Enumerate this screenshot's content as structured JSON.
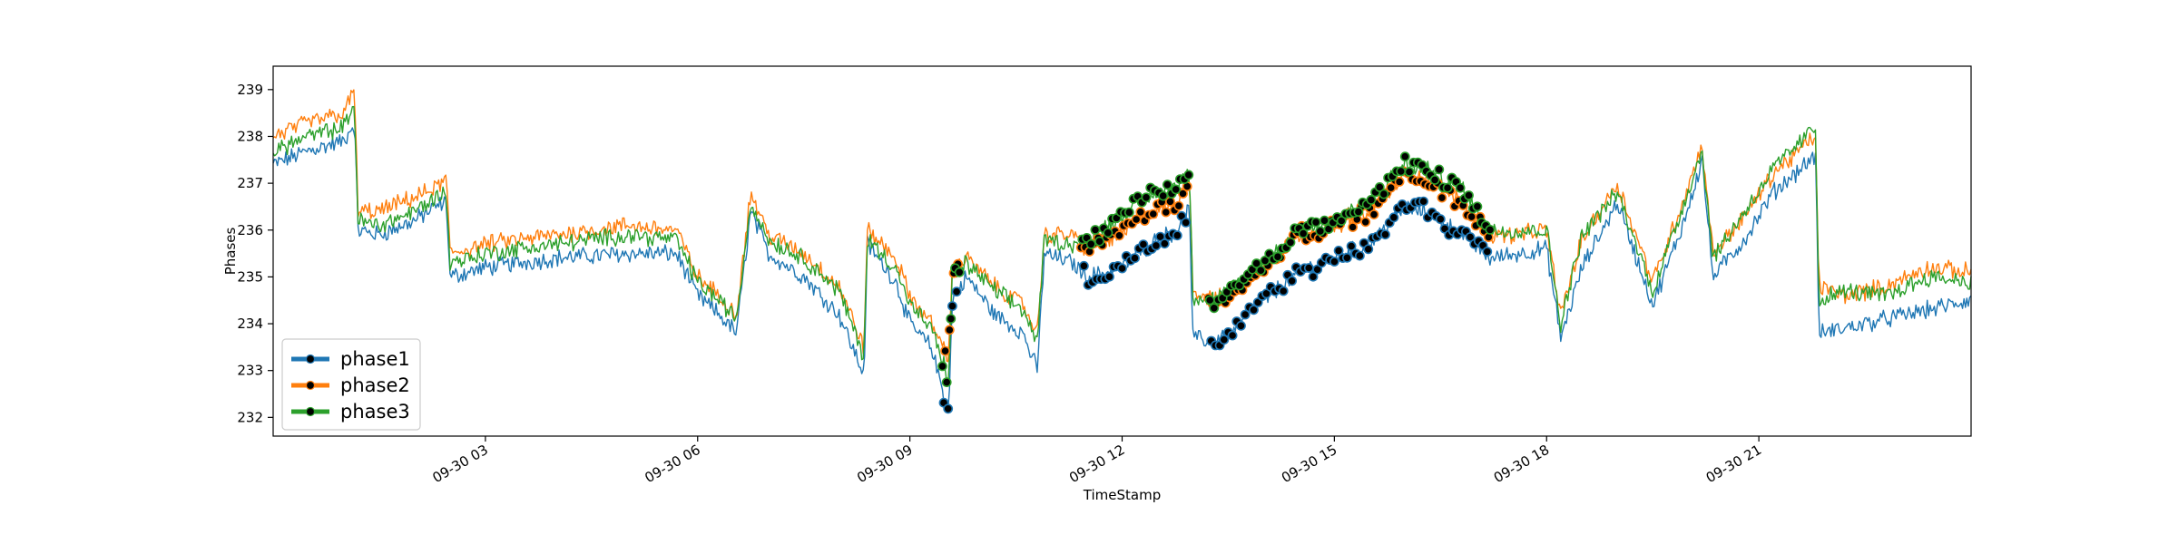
{
  "chart_data": {
    "type": "line",
    "xlabel": "TimeStamp",
    "ylabel": "Phases",
    "x_ticks": [
      "09-30 03",
      "09-30 06",
      "09-30 09",
      "09-30 12",
      "09-30 15",
      "09-30 18",
      "09-30 21"
    ],
    "x_tick_hours": [
      3,
      6,
      9,
      12,
      15,
      18,
      21
    ],
    "xlim_hours": [
      0.0,
      24.0
    ],
    "y_ticks": [
      "232",
      "233",
      "234",
      "235",
      "236",
      "237",
      "238",
      "239"
    ],
    "ylim": [
      231.6,
      239.5
    ],
    "grid": false,
    "legend_position": "lower-left",
    "colors": {
      "phase1": "#1f77b4",
      "phase2": "#ff7f0e",
      "phase3": "#2ca02c",
      "marker_fill": "#000000"
    },
    "series": [
      {
        "name": "phase1",
        "color": "#1f77b4",
        "points": [
          [
            0.0,
            237.4
          ],
          [
            0.5,
            237.7
          ],
          [
            1.0,
            237.9
          ],
          [
            1.15,
            238.3
          ],
          [
            1.2,
            236.0
          ],
          [
            1.5,
            235.9
          ],
          [
            2.0,
            236.2
          ],
          [
            2.3,
            236.5
          ],
          [
            2.45,
            236.6
          ],
          [
            2.5,
            235.0
          ],
          [
            3.0,
            235.2
          ],
          [
            4.0,
            235.4
          ],
          [
            5.0,
            235.5
          ],
          [
            5.7,
            235.5
          ],
          [
            6.0,
            234.6
          ],
          [
            6.3,
            234.2
          ],
          [
            6.55,
            233.8
          ],
          [
            6.75,
            236.4
          ],
          [
            7.0,
            235.5
          ],
          [
            7.5,
            235.0
          ],
          [
            8.0,
            234.2
          ],
          [
            8.35,
            232.9
          ],
          [
            8.4,
            235.7
          ],
          [
            8.8,
            234.9
          ],
          [
            9.0,
            234.0
          ],
          [
            9.3,
            233.5
          ],
          [
            9.55,
            232.1
          ],
          [
            9.6,
            234.5
          ],
          [
            9.8,
            235.0
          ],
          [
            10.2,
            234.2
          ],
          [
            10.6,
            233.8
          ],
          [
            10.8,
            233.0
          ],
          [
            10.9,
            235.5
          ],
          [
            11.3,
            235.3
          ],
          [
            11.5,
            235.0
          ],
          [
            11.8,
            235.1
          ],
          [
            12.0,
            235.2
          ],
          [
            12.2,
            235.5
          ],
          [
            12.5,
            235.8
          ],
          [
            12.8,
            236.0
          ],
          [
            12.95,
            236.5
          ],
          [
            13.0,
            233.7
          ],
          [
            13.3,
            233.6
          ],
          [
            13.6,
            233.9
          ],
          [
            14.0,
            234.5
          ],
          [
            14.5,
            235.1
          ],
          [
            15.0,
            235.4
          ],
          [
            15.5,
            235.7
          ],
          [
            16.0,
            236.5
          ],
          [
            16.3,
            236.4
          ],
          [
            16.8,
            235.9
          ],
          [
            17.2,
            235.4
          ],
          [
            17.6,
            235.5
          ],
          [
            18.0,
            235.6
          ],
          [
            18.2,
            233.7
          ],
          [
            18.5,
            235.2
          ],
          [
            19.0,
            236.6
          ],
          [
            19.5,
            234.4
          ],
          [
            19.9,
            236.0
          ],
          [
            20.2,
            237.5
          ],
          [
            20.35,
            235.0
          ],
          [
            20.8,
            235.8
          ],
          [
            21.2,
            236.8
          ],
          [
            21.8,
            237.6
          ],
          [
            21.85,
            233.8
          ],
          [
            22.2,
            233.9
          ],
          [
            22.8,
            234.1
          ],
          [
            23.4,
            234.3
          ],
          [
            24.0,
            234.5
          ]
        ]
      },
      {
        "name": "phase2",
        "color": "#ff7f0e",
        "points": [
          [
            0.0,
            238.0
          ],
          [
            0.5,
            238.3
          ],
          [
            1.0,
            238.5
          ],
          [
            1.15,
            239.0
          ],
          [
            1.2,
            236.4
          ],
          [
            1.5,
            236.4
          ],
          [
            2.0,
            236.7
          ],
          [
            2.3,
            236.9
          ],
          [
            2.45,
            237.1
          ],
          [
            2.5,
            235.5
          ],
          [
            3.0,
            235.7
          ],
          [
            4.0,
            235.9
          ],
          [
            5.0,
            236.1
          ],
          [
            5.7,
            236.0
          ],
          [
            6.0,
            235.0
          ],
          [
            6.3,
            234.6
          ],
          [
            6.55,
            234.2
          ],
          [
            6.75,
            236.8
          ],
          [
            7.0,
            235.9
          ],
          [
            7.5,
            235.5
          ],
          [
            8.0,
            234.8
          ],
          [
            8.35,
            233.5
          ],
          [
            8.4,
            236.0
          ],
          [
            8.8,
            235.4
          ],
          [
            9.0,
            234.6
          ],
          [
            9.3,
            234.0
          ],
          [
            9.55,
            233.3
          ],
          [
            9.6,
            235.2
          ],
          [
            9.8,
            235.4
          ],
          [
            10.2,
            234.8
          ],
          [
            10.6,
            234.4
          ],
          [
            10.8,
            233.8
          ],
          [
            10.9,
            235.9
          ],
          [
            11.3,
            235.9
          ],
          [
            11.5,
            235.6
          ],
          [
            11.8,
            235.8
          ],
          [
            12.0,
            235.9
          ],
          [
            12.2,
            236.2
          ],
          [
            12.5,
            236.4
          ],
          [
            12.8,
            236.6
          ],
          [
            12.95,
            237.2
          ],
          [
            13.0,
            234.7
          ],
          [
            13.3,
            234.5
          ],
          [
            13.6,
            234.7
          ],
          [
            14.0,
            235.2
          ],
          [
            14.5,
            235.9
          ],
          [
            15.0,
            236.1
          ],
          [
            15.5,
            236.4
          ],
          [
            16.0,
            237.2
          ],
          [
            16.3,
            237.1
          ],
          [
            16.8,
            236.6
          ],
          [
            17.2,
            235.9
          ],
          [
            17.6,
            235.9
          ],
          [
            18.0,
            236.0
          ],
          [
            18.2,
            234.2
          ],
          [
            18.5,
            235.8
          ],
          [
            19.0,
            237.0
          ],
          [
            19.5,
            234.9
          ],
          [
            19.9,
            236.5
          ],
          [
            20.2,
            237.8
          ],
          [
            20.35,
            235.5
          ],
          [
            20.8,
            236.3
          ],
          [
            21.2,
            237.2
          ],
          [
            21.8,
            238.0
          ],
          [
            21.85,
            234.8
          ],
          [
            22.2,
            234.6
          ],
          [
            22.8,
            234.8
          ],
          [
            23.4,
            235.2
          ],
          [
            24.0,
            235.1
          ]
        ]
      },
      {
        "name": "phase3",
        "color": "#2ca02c",
        "points": [
          [
            0.0,
            237.7
          ],
          [
            0.5,
            238.0
          ],
          [
            1.0,
            238.2
          ],
          [
            1.15,
            238.7
          ],
          [
            1.2,
            236.2
          ],
          [
            1.5,
            236.1
          ],
          [
            2.0,
            236.4
          ],
          [
            2.3,
            236.7
          ],
          [
            2.45,
            236.8
          ],
          [
            2.5,
            235.3
          ],
          [
            3.0,
            235.5
          ],
          [
            4.0,
            235.7
          ],
          [
            5.0,
            235.9
          ],
          [
            5.7,
            235.8
          ],
          [
            6.0,
            234.9
          ],
          [
            6.3,
            234.5
          ],
          [
            6.55,
            234.1
          ],
          [
            6.75,
            236.6
          ],
          [
            7.0,
            235.8
          ],
          [
            7.5,
            235.4
          ],
          [
            8.0,
            234.7
          ],
          [
            8.35,
            233.3
          ],
          [
            8.4,
            235.8
          ],
          [
            8.8,
            235.2
          ],
          [
            9.0,
            234.4
          ],
          [
            9.3,
            233.9
          ],
          [
            9.55,
            232.8
          ],
          [
            9.6,
            235.0
          ],
          [
            9.8,
            235.3
          ],
          [
            10.2,
            234.7
          ],
          [
            10.6,
            234.3
          ],
          [
            10.8,
            233.6
          ],
          [
            10.9,
            235.8
          ],
          [
            11.3,
            235.7
          ],
          [
            11.5,
            235.7
          ],
          [
            11.8,
            236.1
          ],
          [
            12.0,
            236.3
          ],
          [
            12.2,
            236.6
          ],
          [
            12.5,
            236.8
          ],
          [
            12.8,
            237.0
          ],
          [
            12.95,
            237.3
          ],
          [
            13.0,
            234.6
          ],
          [
            13.3,
            234.5
          ],
          [
            13.6,
            234.8
          ],
          [
            14.0,
            235.3
          ],
          [
            14.5,
            236.0
          ],
          [
            15.0,
            236.2
          ],
          [
            15.5,
            236.6
          ],
          [
            16.0,
            237.4
          ],
          [
            16.3,
            237.3
          ],
          [
            16.8,
            236.9
          ],
          [
            17.2,
            236.0
          ],
          [
            17.6,
            236.0
          ],
          [
            18.0,
            236.0
          ],
          [
            18.2,
            234.0
          ],
          [
            18.5,
            235.9
          ],
          [
            19.0,
            236.8
          ],
          [
            19.5,
            234.7
          ],
          [
            19.9,
            236.4
          ],
          [
            20.2,
            237.7
          ],
          [
            20.35,
            235.4
          ],
          [
            20.8,
            236.4
          ],
          [
            21.2,
            237.3
          ],
          [
            21.8,
            238.2
          ],
          [
            21.85,
            234.5
          ],
          [
            22.2,
            234.7
          ],
          [
            22.8,
            234.6
          ],
          [
            23.4,
            235.0
          ],
          [
            24.0,
            234.9
          ]
        ]
      }
    ],
    "highlight_windows_hours": [
      [
        9.45,
        9.7
      ],
      [
        11.4,
        12.95
      ],
      [
        13.2,
        17.2
      ]
    ]
  }
}
